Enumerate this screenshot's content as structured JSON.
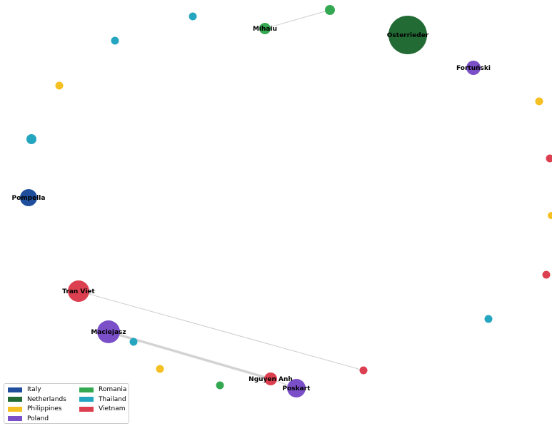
{
  "legend": {
    "items": [
      {
        "label": "Italy",
        "color": "#1f4e9c"
      },
      {
        "label": "Netherlands",
        "color": "#236b35"
      },
      {
        "label": "Philippines",
        "color": "#f5c022"
      },
      {
        "label": "Poland",
        "color": "#7b4fc8"
      },
      {
        "label": "Romania",
        "color": "#35a852"
      },
      {
        "label": "Thailand",
        "color": "#25a6c0"
      },
      {
        "label": "Vietnam",
        "color": "#dc3f4f"
      }
    ]
  },
  "nodes": [
    {
      "id": "osterrieder",
      "label": "Osterrieder",
      "country": "Netherlands"
    },
    {
      "id": "mihaiu",
      "label": "Mihaiu",
      "country": "Romania"
    },
    {
      "id": "fortunski",
      "label": "Fortuński",
      "country": "Poland"
    },
    {
      "id": "pompella",
      "label": "Pompella",
      "country": "Italy"
    },
    {
      "id": "tran-viet",
      "label": "Tran Viet",
      "country": "Vietnam"
    },
    {
      "id": "maciejasz",
      "label": "Maciejasz",
      "country": "Poland"
    },
    {
      "id": "nguyen-anh",
      "label": "Nguyen Anh",
      "country": "Vietnam"
    },
    {
      "id": "poskart",
      "label": "Poskart",
      "country": "Poland"
    },
    {
      "id": "n1",
      "label": "",
      "country": "Thailand"
    },
    {
      "id": "n2",
      "label": "",
      "country": "Thailand"
    },
    {
      "id": "n3",
      "label": "",
      "country": "Romania"
    },
    {
      "id": "n4",
      "label": "",
      "country": "Philippines"
    },
    {
      "id": "n5",
      "label": "",
      "country": "Thailand"
    },
    {
      "id": "n6",
      "label": "",
      "country": "Philippines"
    },
    {
      "id": "n7",
      "label": "",
      "country": "Vietnam"
    },
    {
      "id": "n8",
      "label": "",
      "country": "Philippines"
    },
    {
      "id": "n9",
      "label": "",
      "country": "Vietnam"
    },
    {
      "id": "n10",
      "label": "",
      "country": "Thailand"
    },
    {
      "id": "n11",
      "label": "",
      "country": "Vietnam"
    },
    {
      "id": "n12",
      "label": "",
      "country": "Thailand"
    },
    {
      "id": "n13",
      "label": "",
      "country": "Philippines"
    },
    {
      "id": "n14",
      "label": "",
      "country": "Romania"
    }
  ],
  "edges": [
    {
      "source": "mihaiu",
      "target": "n3",
      "weight": 1
    },
    {
      "source": "tran-viet",
      "target": "n11",
      "weight": 1
    },
    {
      "source": "maciejasz",
      "target": "nguyen-anh",
      "weight": 3
    },
    {
      "source": "nguyen-anh",
      "target": "poskart",
      "weight": 1
    }
  ]
}
